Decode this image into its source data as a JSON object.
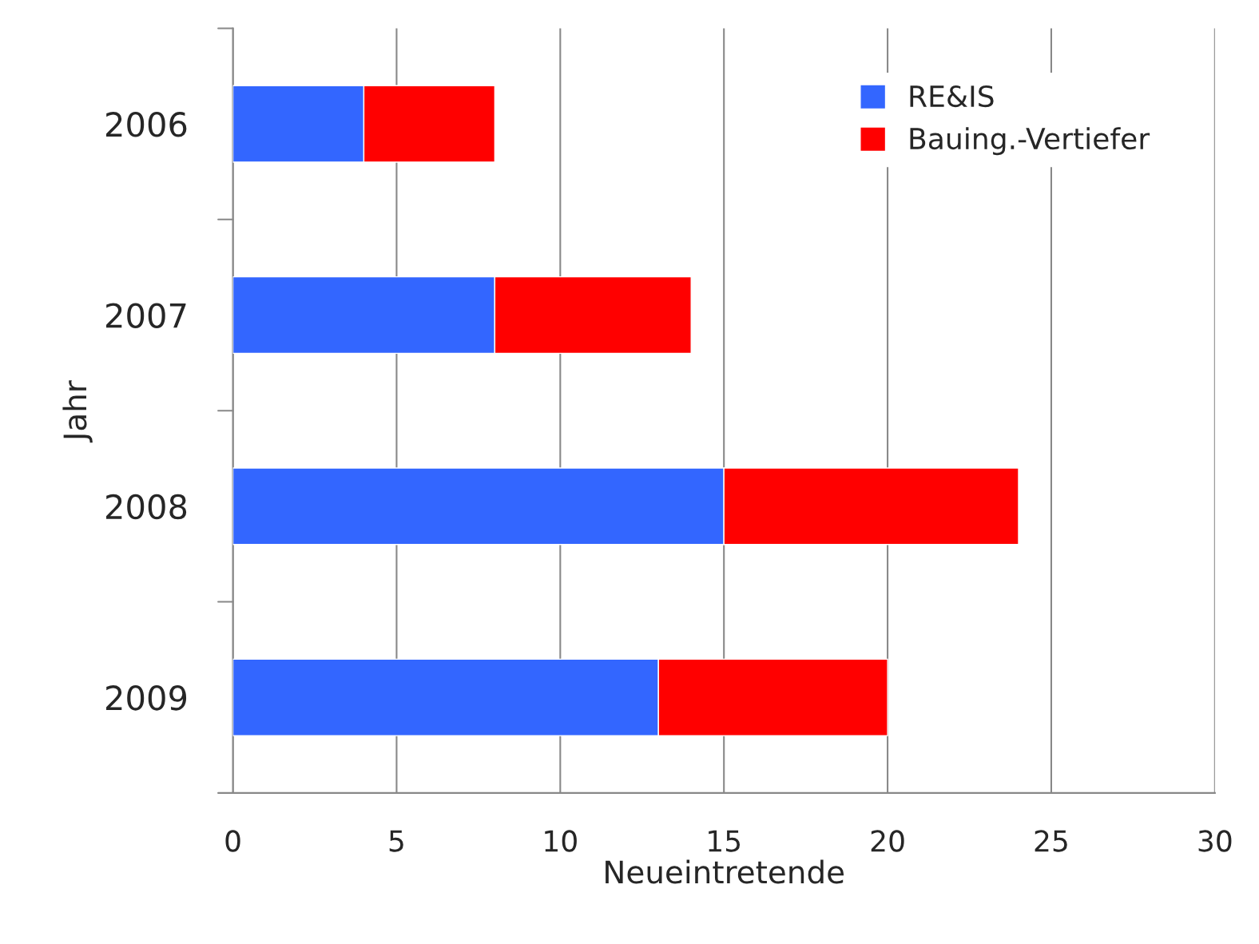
{
  "chart_data": {
    "type": "bar",
    "orientation": "horizontal",
    "stacked": true,
    "categories": [
      "2006",
      "2007",
      "2008",
      "2009"
    ],
    "series": [
      {
        "name": "RE&IS",
        "color": "#3366ff",
        "values": [
          4,
          8,
          15,
          13
        ]
      },
      {
        "name": "Bauing.-Vertiefer",
        "color": "#ff0000",
        "values": [
          4,
          6,
          9,
          7
        ]
      }
    ],
    "xlim": [
      0,
      30
    ],
    "xticks": [
      0,
      5,
      10,
      15,
      20,
      25,
      30
    ],
    "xlabel": "Neueintretende",
    "ylabel": "Jahr",
    "grid": "x",
    "legend": "top right"
  }
}
